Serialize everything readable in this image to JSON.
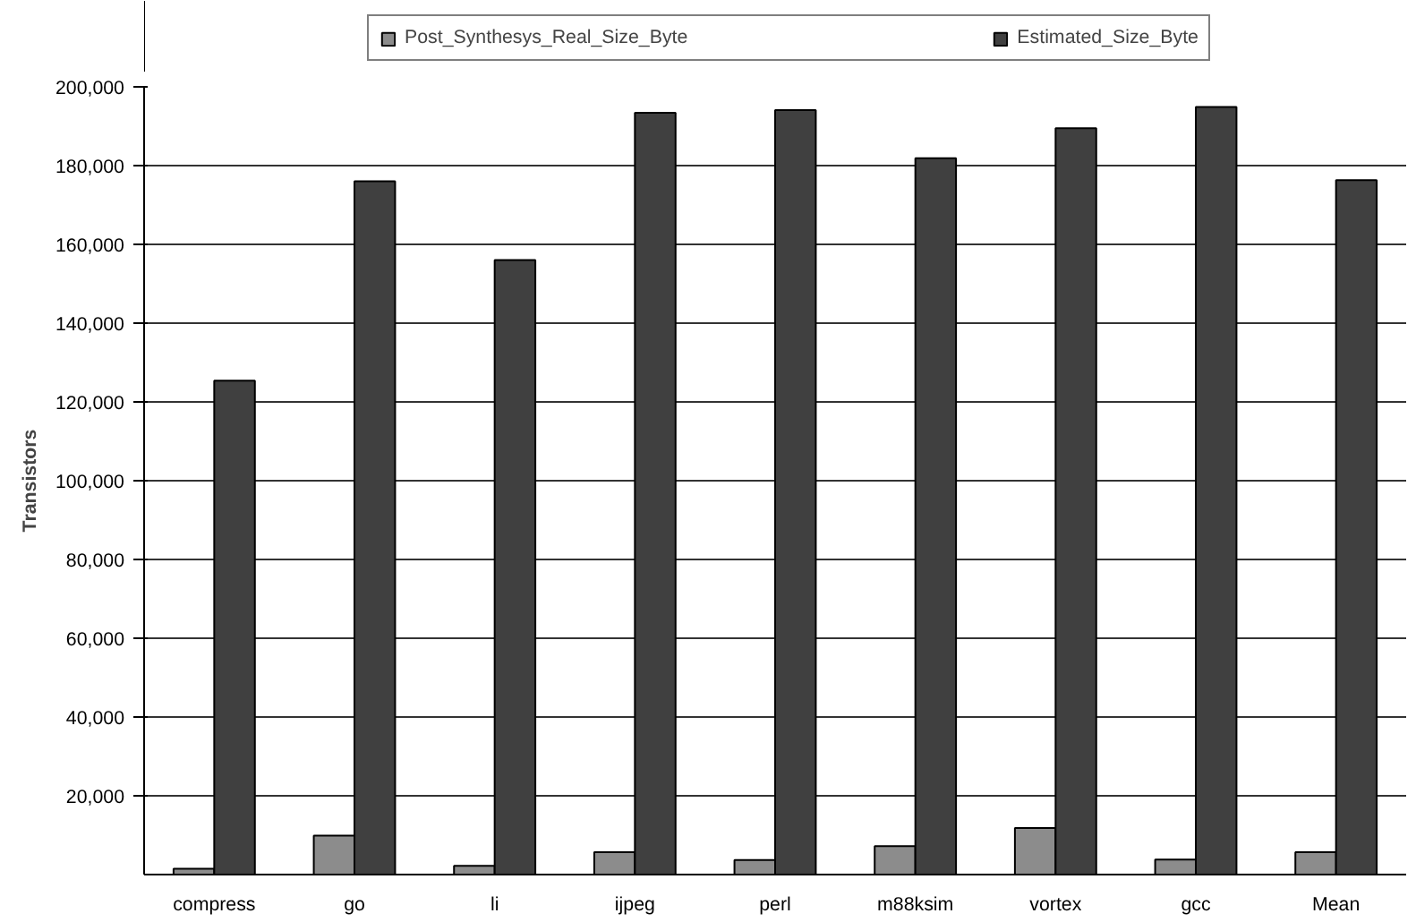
{
  "chart_data": {
    "type": "bar",
    "ylabel": "Transistors",
    "categories": [
      "compress",
      "go",
      "li",
      "ijpeg",
      "perl",
      "m88ksim",
      "vortex",
      "gcc",
      "Mean"
    ],
    "series": [
      {
        "name": "Post_Synthesys_Real_Size_Byte",
        "color": "#8c8c8c",
        "values": [
          1500,
          9900,
          2200,
          5700,
          3700,
          7200,
          11800,
          3800,
          5700
        ]
      },
      {
        "name": "Estimated_Size_Byte",
        "color": "#404040",
        "values": [
          125400,
          176000,
          156000,
          193400,
          194100,
          181900,
          189500,
          194900,
          176300
        ]
      }
    ],
    "ylim": [
      0,
      200000
    ],
    "yticks": [
      {
        "value": 20000,
        "label": "20,000"
      },
      {
        "value": 40000,
        "label": "40,000"
      },
      {
        "value": 60000,
        "label": "60,000"
      },
      {
        "value": 80000,
        "label": "80,000"
      },
      {
        "value": 100000,
        "label": "100,000"
      },
      {
        "value": 120000,
        "label": "120,000"
      },
      {
        "value": 140000,
        "label": "140,000"
      },
      {
        "value": 160000,
        "label": "160,000"
      },
      {
        "value": 180000,
        "label": "180,000"
      },
      {
        "value": 200000,
        "label": "200,000"
      }
    ],
    "grid": "y",
    "legend": "top"
  }
}
